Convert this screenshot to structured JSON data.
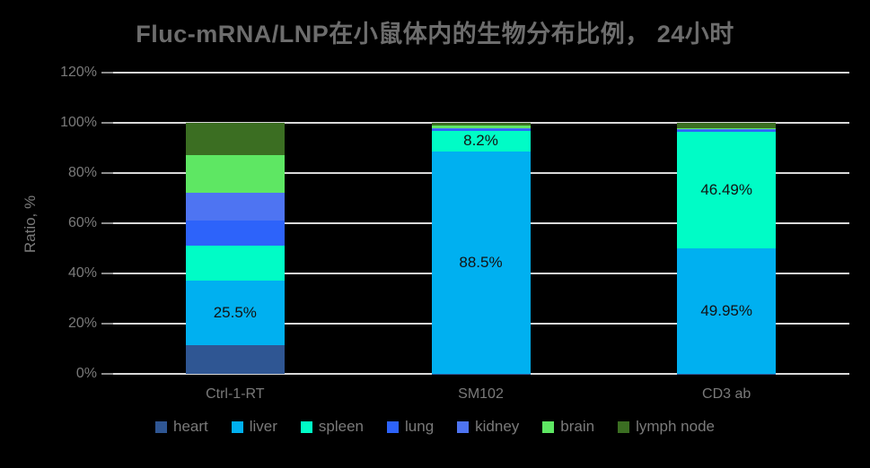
{
  "chart_data": {
    "type": "bar",
    "stacked": true,
    "title": "Fluc-mRNA/LNP在小鼠体内的生物分布比例， 24小时",
    "xlabel": "",
    "ylabel": "Ratio, %",
    "categories": [
      "Ctrl-1-RT",
      "SM102",
      "CD3 ab"
    ],
    "y_axis": {
      "min": 0,
      "max": 120,
      "step": 20,
      "tick_suffix": "%",
      "tick_labels": [
        "0%",
        "20%",
        "40%",
        "60%",
        "80%",
        "100%",
        "120%"
      ]
    },
    "grid": true,
    "legend_position": "bottom",
    "background_color": "#000000",
    "gridline_color": "#d9d9d9",
    "text_color": "#7a7a7a",
    "series": [
      {
        "name": "heart",
        "color": "#2f5693",
        "values": [
          11.5,
          0.1,
          0.1
        ]
      },
      {
        "name": "liver",
        "color": "#00b0f0",
        "values": [
          25.5,
          88.5,
          49.95
        ]
      },
      {
        "name": "spleen",
        "color": "#00fcc6",
        "values": [
          14.0,
          8.2,
          46.49
        ]
      },
      {
        "name": "lung",
        "color": "#2d63fa",
        "values": [
          10.0,
          0.6,
          0.5
        ]
      },
      {
        "name": "kidney",
        "color": "#4e74f2",
        "values": [
          11.0,
          0.6,
          0.5
        ]
      },
      {
        "name": "brain",
        "color": "#5ee763",
        "values": [
          15.0,
          0.8,
          0.25
        ]
      },
      {
        "name": "lymph node",
        "color": "#3b6e22",
        "values": [
          13.0,
          1.2,
          2.21
        ]
      }
    ],
    "data_labels": [
      {
        "category": "Ctrl-1-RT",
        "series": "liver",
        "text": "25.5%"
      },
      {
        "category": "SM102",
        "series": "liver",
        "text": "88.5%"
      },
      {
        "category": "SM102",
        "series": "spleen",
        "text": "8.2%"
      },
      {
        "category": "CD3 ab",
        "series": "liver",
        "text": "49.95%"
      },
      {
        "category": "CD3 ab",
        "series": "spleen",
        "text": "46.49%"
      }
    ]
  }
}
